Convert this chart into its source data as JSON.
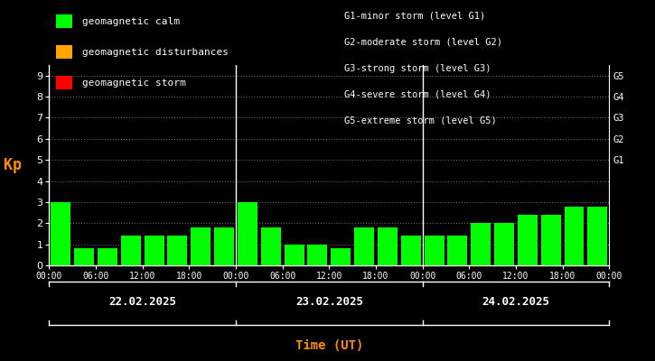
{
  "background_color": "#000000",
  "plot_bg_color": "#000000",
  "bar_color_calm": "#00ff00",
  "bar_color_disturbance": "#ffa500",
  "bar_color_storm": "#ff0000",
  "grid_color": "#ffffff",
  "text_color": "#ffffff",
  "kp_label_color": "#ff8c00",
  "time_label_color": "#ff8c00",
  "ylim": [
    0,
    9.5
  ],
  "yticks": [
    0,
    1,
    2,
    3,
    4,
    5,
    6,
    7,
    8,
    9
  ],
  "right_labels": [
    [
      5,
      "G1"
    ],
    [
      6,
      "G2"
    ],
    [
      7,
      "G3"
    ],
    [
      8,
      "G4"
    ],
    [
      9,
      "G5"
    ]
  ],
  "days": [
    "22.02.2025",
    "23.02.2025",
    "24.02.2025"
  ],
  "kp_values": [
    [
      3.0,
      0.8,
      0.8,
      1.4,
      1.4,
      1.4,
      1.8,
      1.8
    ],
    [
      3.0,
      1.8,
      1.0,
      1.0,
      0.8,
      1.8,
      1.8,
      1.4
    ],
    [
      1.4,
      1.4,
      2.0,
      2.0,
      2.4,
      2.4,
      2.8,
      2.8
    ]
  ],
  "legend_items": [
    {
      "label": "geomagnetic calm",
      "color": "#00ff00"
    },
    {
      "label": "geomagnetic disturbances",
      "color": "#ffa500"
    },
    {
      "label": "geomagnetic storm",
      "color": "#ff0000"
    }
  ],
  "right_legend_lines": [
    "G1-minor storm (level G1)",
    "G2-moderate storm (level G2)",
    "G3-strong storm (level G3)",
    "G4-severe storm (level G4)",
    "G5-extreme storm (level G5)"
  ],
  "xlabel": "Time (UT)",
  "ylabel": "Kp",
  "bar_width": 0.85,
  "num_days": 3
}
